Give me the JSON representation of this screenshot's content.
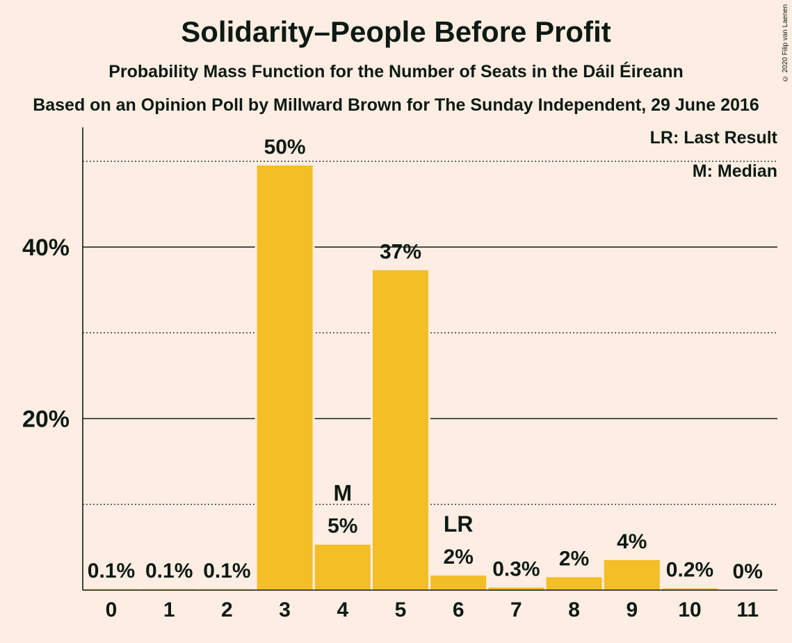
{
  "title": "Solidarity–People Before Profit",
  "subtitle": "Probability Mass Function for the Number of Seats in the Dáil Éireann",
  "source": "Based on an Opinion Poll by Millward Brown for The Sunday Independent, 29 June 2016",
  "copyright": "© 2020 Filip van Laenen",
  "legend": {
    "last_result": "LR: Last Result",
    "median": "M: Median"
  },
  "colors": {
    "background": "#FDEDE2",
    "bar": "#F3BE26",
    "text": "#0D1A14"
  },
  "chart_data": {
    "type": "bar",
    "categories": [
      "0",
      "1",
      "2",
      "3",
      "4",
      "5",
      "6",
      "7",
      "8",
      "9",
      "10",
      "11"
    ],
    "values": [
      0.1,
      0.1,
      0.1,
      49.5,
      5.3,
      37.3,
      1.7,
      0.3,
      1.5,
      3.5,
      0.2,
      0
    ],
    "labels": [
      "0.1%",
      "0.1%",
      "0.1%",
      "50%",
      "5%",
      "37%",
      "2%",
      "0.3%",
      "2%",
      "4%",
      "0.2%",
      "0%"
    ],
    "y_ticks": [
      {
        "value": 20,
        "label": "20%"
      },
      {
        "value": 40,
        "label": "40%"
      }
    ],
    "minor_gridlines": [
      10,
      30,
      50
    ],
    "ylim": [
      0,
      54
    ],
    "median_index": 4,
    "median_marker": "M",
    "last_result_index": 6,
    "last_result_marker": "LR",
    "xlabel": "",
    "ylabel": ""
  }
}
